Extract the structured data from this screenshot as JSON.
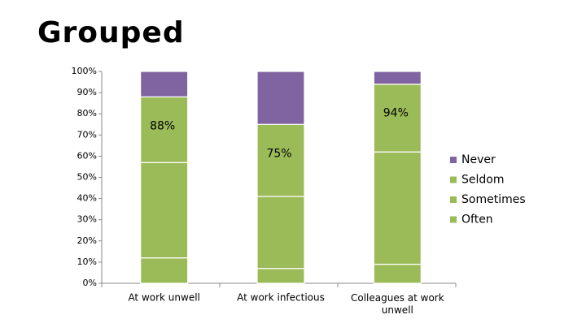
{
  "chart_data": {
    "type": "stacked_bar",
    "title": "Grouped",
    "categories": [
      "At work unwell",
      "At work infectious",
      "Colleagues at work unwell"
    ],
    "series": [
      {
        "name": "Often",
        "color": "#9bbb59",
        "values": [
          12,
          7,
          9
        ]
      },
      {
        "name": "Sometimes",
        "color": "#9bbb59",
        "values": [
          45,
          34,
          53
        ]
      },
      {
        "name": "Seldom",
        "color": "#9bbb59",
        "values": [
          31,
          34,
          32
        ]
      },
      {
        "name": "Never",
        "color": "#8064a2",
        "values": [
          12,
          25,
          6
        ]
      }
    ],
    "annotations": [
      "88%",
      "75%",
      "94%"
    ],
    "ylim": [
      0,
      100
    ],
    "yticks": [
      {
        "value": 0,
        "label": "0%"
      },
      {
        "value": 10,
        "label": "10%"
      },
      {
        "value": 20,
        "label": "20%"
      },
      {
        "value": 30,
        "label": "30%"
      },
      {
        "value": 40,
        "label": "40%"
      },
      {
        "value": 50,
        "label": "50%"
      },
      {
        "value": 60,
        "label": "60%"
      },
      {
        "value": 70,
        "label": "70%"
      },
      {
        "value": 80,
        "label": "80%"
      },
      {
        "value": 90,
        "label": "90%"
      },
      {
        "value": 100,
        "label": "100%"
      }
    ],
    "legend": "right"
  }
}
